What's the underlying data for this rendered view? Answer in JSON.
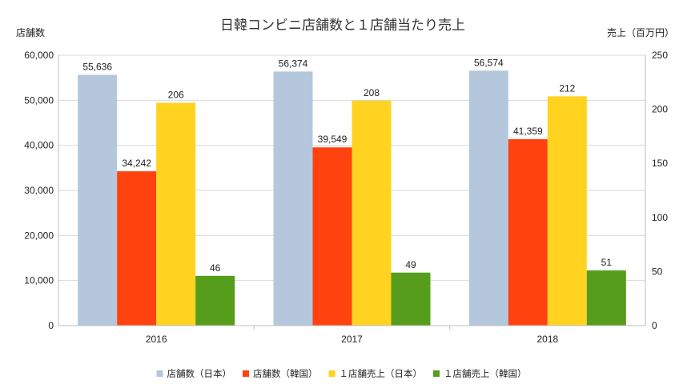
{
  "chart_data": {
    "type": "bar",
    "title": "日韓コンビニ店舗数と１店舗当たり売上",
    "categories": [
      "2016",
      "2017",
      "2018"
    ],
    "y_left": {
      "label": "店舗数",
      "min": 0,
      "max": 60000,
      "step": 10000,
      "ticks": [
        "0",
        "10,000",
        "20,000",
        "30,000",
        "40,000",
        "50,000",
        "60,000"
      ]
    },
    "y_right": {
      "label": "売上（百万円）",
      "min": 0,
      "max": 250,
      "step": 50,
      "ticks": [
        "0",
        "50",
        "100",
        "150",
        "200",
        "250"
      ]
    },
    "series": [
      {
        "name": "店舗数（日本）",
        "axis": "left",
        "color": "#b4c7dc",
        "values": [
          55636,
          56374,
          56574
        ],
        "labels": [
          "55,636",
          "56,374",
          "56,574"
        ]
      },
      {
        "name": "店舗数（韓国）",
        "axis": "left",
        "color": "#ff420e",
        "values": [
          34242,
          39549,
          41359
        ],
        "labels": [
          "34,242",
          "39,549",
          "41,359"
        ]
      },
      {
        "name": "１店舗売上（日本）",
        "axis": "right",
        "color": "#ffd320",
        "values": [
          206,
          208,
          212
        ],
        "labels": [
          "206",
          "208",
          "212"
        ]
      },
      {
        "name": "１店舗売上（韓国）",
        "axis": "right",
        "color": "#579d1c",
        "values": [
          46,
          49,
          51
        ],
        "labels": [
          "46",
          "49",
          "51"
        ]
      }
    ],
    "grid": true,
    "legend": "bottom"
  }
}
